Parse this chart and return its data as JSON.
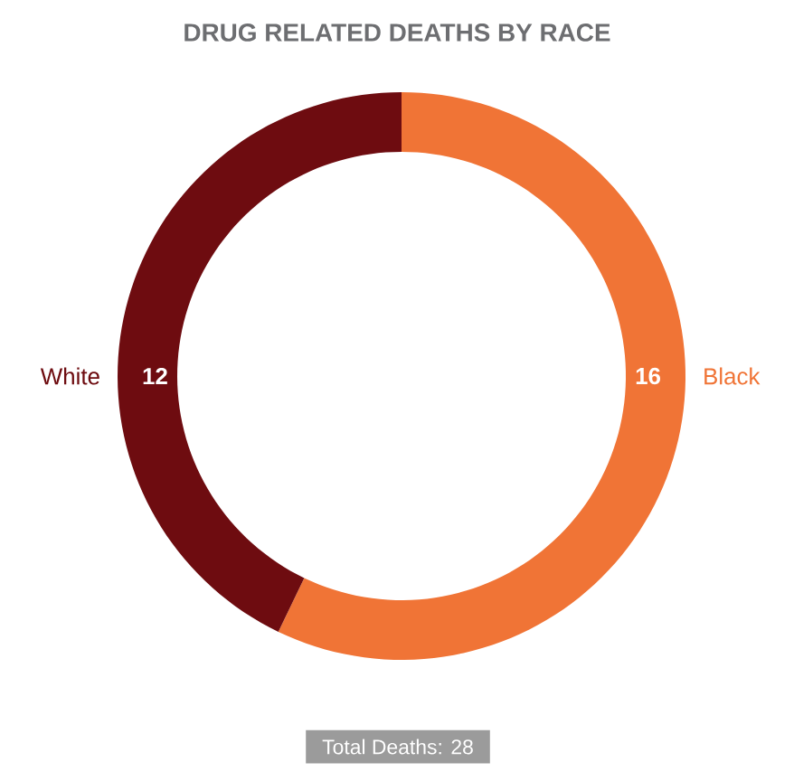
{
  "chart_data": {
    "type": "donut",
    "title": "DRUG RELATED DEATHS BY RACE",
    "categories": [
      "Black",
      "White"
    ],
    "values": [
      16,
      12
    ],
    "colors": [
      "#f07436",
      "#6e0c10"
    ],
    "data_labels": true,
    "legend": false,
    "annotations": [
      "Total Deaths: 28"
    ]
  }
}
